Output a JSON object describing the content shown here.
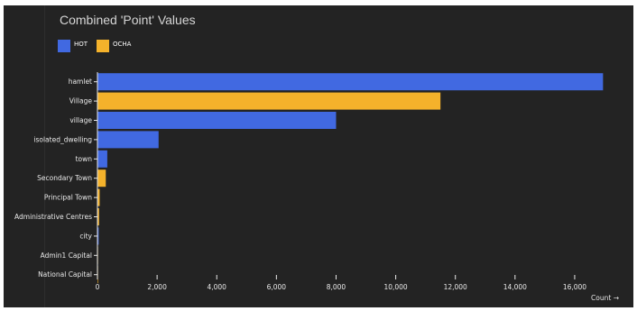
{
  "chart_data": {
    "type": "bar",
    "orientation": "horizontal",
    "title": "Combined 'Point' Values",
    "xlabel": "Count →",
    "ylabel": "",
    "xlim": [
      0,
      17000
    ],
    "x_ticks": [
      0,
      2000,
      4000,
      6000,
      8000,
      10000,
      12000,
      14000,
      16000
    ],
    "x_tick_labels": [
      "0",
      "2,000",
      "4,000",
      "6,000",
      "8,000",
      "10,000",
      "12,000",
      "14,000",
      "16,000"
    ],
    "legend_position": "top-left",
    "grid": false,
    "series": [
      {
        "name": "HOT",
        "color": "#4169e1"
      },
      {
        "name": "OCHA",
        "color": "#f4b22b"
      }
    ],
    "bars": [
      {
        "category": "hamlet",
        "series": "HOT",
        "value": 16950
      },
      {
        "category": "Village",
        "series": "OCHA",
        "value": 11500
      },
      {
        "category": "village",
        "series": "HOT",
        "value": 8000
      },
      {
        "category": "isolated_dwelling",
        "series": "HOT",
        "value": 2050
      },
      {
        "category": "town",
        "series": "HOT",
        "value": 330
      },
      {
        "category": "Secondary Town",
        "series": "OCHA",
        "value": 280
      },
      {
        "category": "Principal Town",
        "series": "OCHA",
        "value": 75
      },
      {
        "category": "Administrative Centres",
        "series": "OCHA",
        "value": 55
      },
      {
        "category": "city",
        "series": "HOT",
        "value": 40
      },
      {
        "category": "Admin1 Capital",
        "series": "OCHA",
        "value": 8
      },
      {
        "category": "National Capital",
        "series": "OCHA",
        "value": 1
      }
    ]
  },
  "colors": {
    "background": "#232323",
    "text": "#e8e8e8"
  }
}
